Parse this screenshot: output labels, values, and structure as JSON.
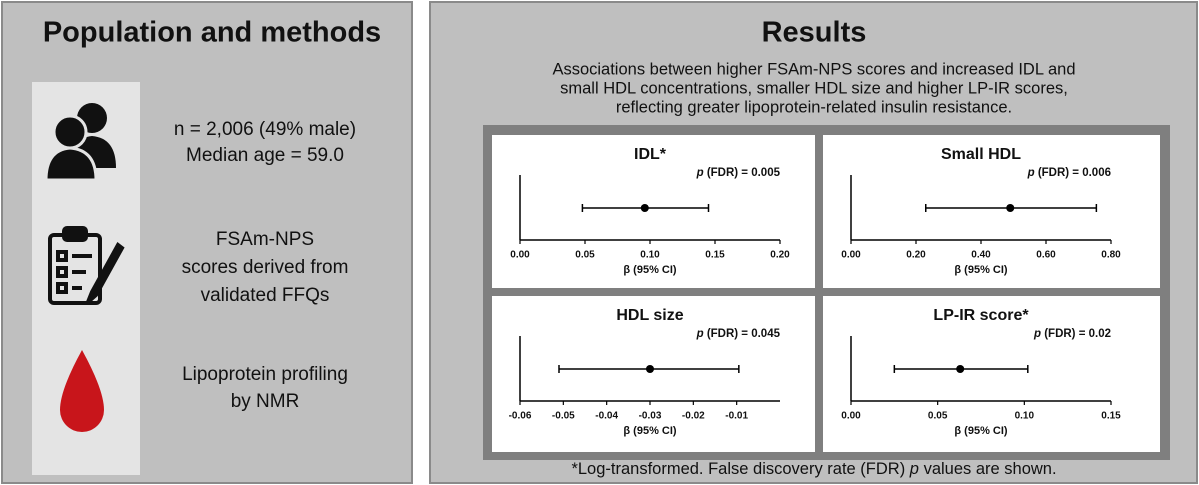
{
  "left_panel": {
    "title": "Population and methods",
    "items": [
      {
        "lines": [
          "n = 2,006 (49% male)",
          "Median age = 59.0"
        ]
      },
      {
        "lines": [
          "FSAm-NPS",
          "scores derived from",
          "validated FFQs"
        ]
      },
      {
        "lines": [
          "Lipoprotein profiling",
          "by NMR"
        ]
      }
    ]
  },
  "right_panel": {
    "title": "Results",
    "description": [
      "Associations between higher FSAm-NPS scores and increased IDL and",
      "small HDL concentrations, smaller HDL size and higher LP-IR scores,",
      "reflecting greater lipoprotein-related insulin resistance."
    ],
    "footnote": [
      "*Log-transformed. False discovery rate (FDR) ",
      "p",
      " values are shown."
    ]
  },
  "chart_data": [
    {
      "type": "forest",
      "title": "IDL*",
      "p_symbol": "p",
      "annotation": "(FDR) = 0.005",
      "x_label": "β (95% CI)",
      "estimate": 0.096,
      "ci": [
        0.048,
        0.145
      ],
      "color": "#000000",
      "xlim": [
        0,
        0.2
      ],
      "xticks": [
        {
          "value": 0,
          "label": "0.00"
        },
        0.05,
        {
          "value": 0.1,
          "label": "0.10"
        },
        0.15,
        {
          "value": 0.2,
          "label": "0.20"
        }
      ]
    },
    {
      "type": "forest",
      "title": "Small HDL",
      "p_symbol": "p",
      "annotation": "(FDR) = 0.006",
      "x_label": "β (95% CI)",
      "estimate": 0.49,
      "ci": [
        0.23,
        0.755
      ],
      "color": "#000000",
      "xlim": [
        0,
        0.8
      ],
      "xticks": [
        {
          "value": 0,
          "label": "0.00"
        },
        {
          "value": 0.2,
          "label": "0.20"
        },
        {
          "value": 0.4,
          "label": "0.40"
        },
        {
          "value": 0.6,
          "label": "0.60"
        },
        {
          "value": 0.8,
          "label": "0.80"
        }
      ]
    },
    {
      "type": "forest",
      "title": "HDL size",
      "p_symbol": "p",
      "annotation": "(FDR) = 0.045",
      "x_label": "β (95% CI)",
      "estimate": -0.03,
      "ci": [
        -0.051,
        -0.0095
      ],
      "color": "#000000",
      "xlim": [
        -0.06,
        0
      ],
      "xticks": [
        -0.06,
        -0.05,
        -0.04,
        -0.03,
        -0.02,
        -0.01
      ]
    },
    {
      "type": "forest",
      "title": "LP-IR score*",
      "p_symbol": "p",
      "annotation": "(FDR) = 0.02",
      "x_label": "β (95% CI)",
      "estimate": 0.063,
      "ci": [
        0.025,
        0.102
      ],
      "color": "#000000",
      "xlim": [
        0,
        0.15
      ],
      "xticks": [
        {
          "value": 0,
          "label": "0.00"
        },
        0.05,
        {
          "value": 0.1,
          "label": "0.10"
        },
        0.15
      ]
    }
  ]
}
